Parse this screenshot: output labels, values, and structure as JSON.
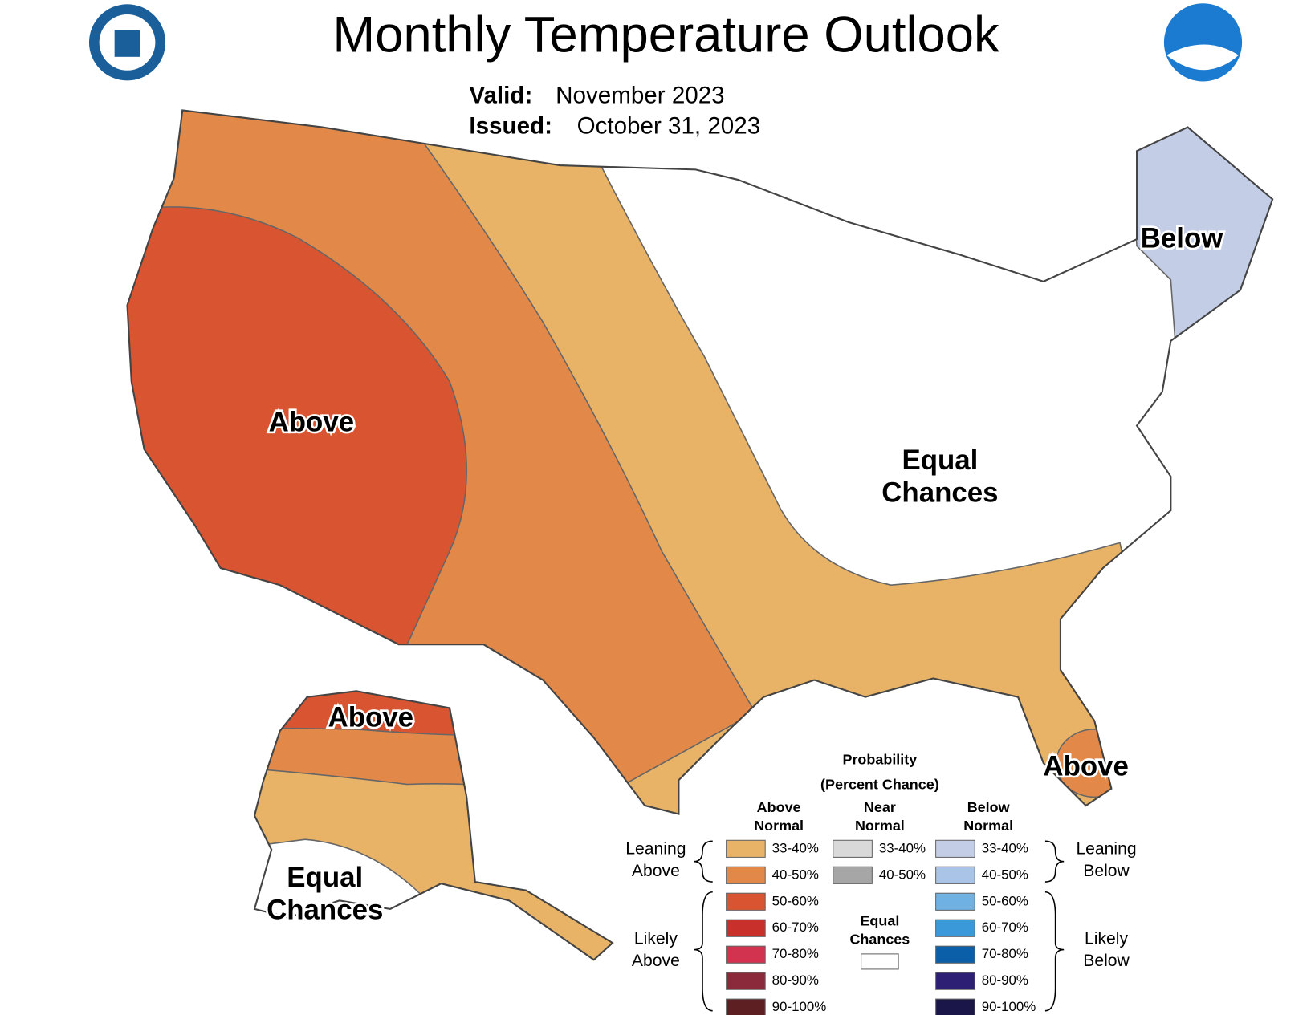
{
  "header": {
    "title": "Monthly Temperature Outlook",
    "valid_label": "Valid:",
    "valid_value": "November 2023",
    "issued_label": "Issued:",
    "issued_value": "October 31, 2023"
  },
  "map_labels": [
    [
      "Above"
    ],
    [
      "Below"
    ],
    [
      "Equal",
      "Chances"
    ],
    [
      "Above"
    ],
    [
      "Above"
    ],
    [
      "Equal",
      "Chances"
    ]
  ],
  "legend": {
    "title": [
      "Probability",
      "(Percent Chance)"
    ],
    "columns": [
      [
        "Above",
        "Normal"
      ],
      [
        "Near",
        "Normal"
      ],
      [
        "Below",
        "Normal"
      ]
    ],
    "above": [
      "33-40%",
      "40-50%",
      "50-60%",
      "60-70%",
      "70-80%",
      "80-90%",
      "90-100%"
    ],
    "near": [
      "33-40%",
      "40-50%"
    ],
    "below": [
      "33-40%",
      "40-50%",
      "50-60%",
      "60-70%",
      "70-80%",
      "80-90%",
      "90-100%"
    ],
    "equal_chances": [
      "Equal",
      "Chances"
    ],
    "groups": {
      "leaning_above": [
        "Leaning",
        "Above"
      ],
      "likely_above": [
        "Likely",
        "Above"
      ],
      "leaning_below": [
        "Leaning",
        "Below"
      ],
      "likely_below": [
        "Likely",
        "Below"
      ]
    }
  }
}
